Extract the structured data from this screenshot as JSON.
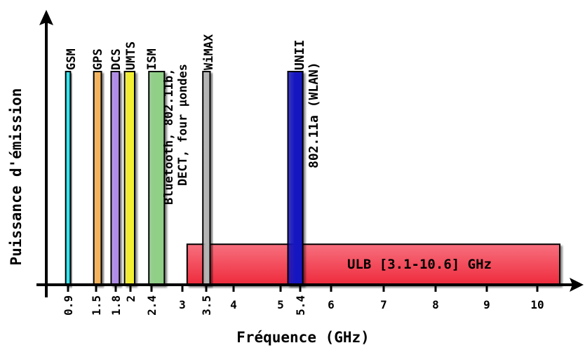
{
  "chart_data": {
    "type": "bar",
    "xlabel": "Fréquence (GHz)",
    "ylabel": "Puissance d'émission",
    "x_ticks": [
      {
        "value": 0.9,
        "label": "0.9",
        "rotated": true
      },
      {
        "value": 1.5,
        "label": "1.5",
        "rotated": true
      },
      {
        "value": 1.8,
        "label": "1.8",
        "rotated": true
      },
      {
        "value": 2.0,
        "label": "2",
        "rotated": true
      },
      {
        "value": 2.4,
        "label": "2.4",
        "rotated": true
      },
      {
        "value": 3.0,
        "label": "3",
        "rotated": false
      },
      {
        "value": 3.5,
        "label": "3.5",
        "rotated": true
      },
      {
        "value": 4.0,
        "label": "4",
        "rotated": false
      },
      {
        "value": 5.0,
        "label": "5",
        "rotated": false
      },
      {
        "value": 5.4,
        "label": "5.4",
        "rotated": true
      },
      {
        "value": 6.0,
        "label": "6",
        "rotated": false
      },
      {
        "value": 7.0,
        "label": "7",
        "rotated": false
      },
      {
        "value": 8.0,
        "label": "8",
        "rotated": false
      },
      {
        "value": 9.0,
        "label": "9",
        "rotated": false
      },
      {
        "value": 10.0,
        "label": "10",
        "rotated": false
      }
    ],
    "bands": [
      {
        "name": "GSM",
        "x0": 0.85,
        "x1": 0.95,
        "power": 1.0,
        "color": "#33e5f0",
        "labels": [
          "GSM"
        ]
      },
      {
        "name": "GPS",
        "x0": 1.45,
        "x1": 1.58,
        "power": 1.0,
        "color": "#f4b35c",
        "labels": [
          "GPS"
        ]
      },
      {
        "name": "DCS",
        "x0": 1.73,
        "x1": 1.85,
        "power": 1.0,
        "color": "#b08ce8",
        "labels": [
          "DCS"
        ]
      },
      {
        "name": "UMTS",
        "x0": 1.92,
        "x1": 2.08,
        "power": 1.0,
        "color": "#f2ee33",
        "labels": [
          "UMTS"
        ]
      },
      {
        "name": "ISM",
        "x0": 2.35,
        "x1": 2.65,
        "power": 1.0,
        "color": "#8fcf86",
        "labels": [
          "ISM",
          "Bluetooth, 802.11b,",
          "DECT, four μondes"
        ]
      },
      {
        "name": "WiMAX",
        "x0": 3.43,
        "x1": 3.57,
        "power": 1.0,
        "color": "#b4b4b4",
        "labels": [
          "WiMAX"
        ]
      },
      {
        "name": "UNII",
        "x0": 5.15,
        "x1": 5.45,
        "power": 1.0,
        "color": "#1414c0",
        "labels": [
          "UNII",
          "802.11a (WLAN)"
        ]
      }
    ],
    "ulb": {
      "x0": 3.1,
      "x1": 10.6,
      "power": 0.19,
      "color": "#ee2a3c",
      "label": "ULB [3.1-10.6] GHz"
    }
  }
}
